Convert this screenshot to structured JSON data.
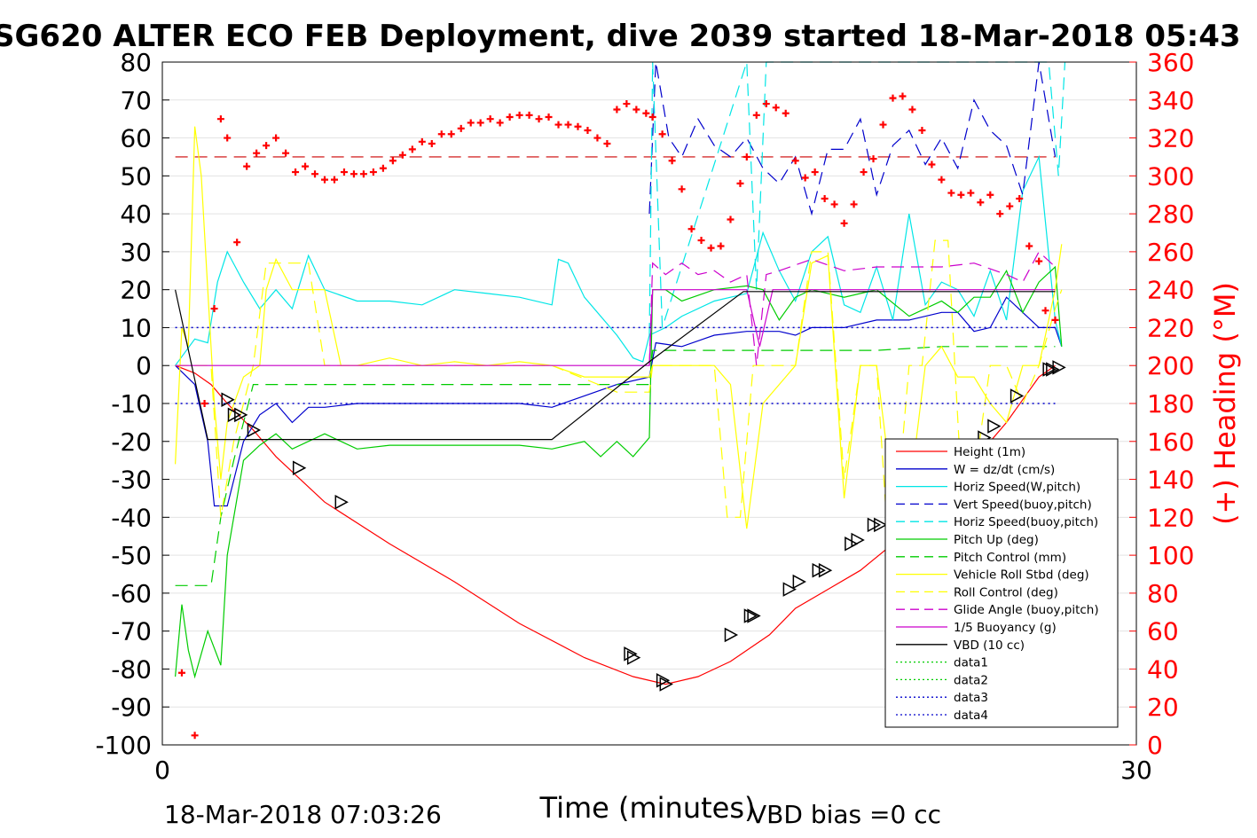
{
  "chart_data": {
    "type": "line",
    "title": "SG620 ALTER ECO FEB Deployment, dive 2039 started 18-Mar-2018 05:43",
    "xlabel": "Time (minutes)",
    "ylabel_right": "(+) Heading (°M)",
    "xlim": [
      0,
      30
    ],
    "ylim": [
      -100,
      80
    ],
    "ylim_right": [
      0,
      360
    ],
    "x_ticks": [
      "0",
      "30"
    ],
    "y_ticks": [
      "80",
      "70",
      "60",
      "50",
      "40",
      "30",
      "20",
      "10",
      "0",
      "-10",
      "-20",
      "-30",
      "-40",
      "-50",
      "-60",
      "-70",
      "-80",
      "-90",
      "-100"
    ],
    "y_ticks_right": [
      "360",
      "340",
      "320",
      "300",
      "280",
      "260",
      "240",
      "220",
      "200",
      "180",
      "160",
      "140",
      "120",
      "100",
      "80",
      "60",
      "40",
      "20",
      "0"
    ],
    "grid": true,
    "legend_position": "lower-right",
    "footer_left": "18-Mar-2018 07:03:26",
    "footer_right": "VBD bias =0 cc",
    "colors": {
      "heading": "#ff0000",
      "right_axis": "#ff0000"
    },
    "series": [
      {
        "name": "Height (1m)",
        "color": "#ff0000",
        "dash": "solid",
        "x": [
          0.4,
          1.0,
          1.5,
          2.0,
          2.8,
          3.5,
          5.0,
          7.0,
          9.0,
          11.0,
          13.0,
          14.5,
          15.5,
          16.5,
          17.5,
          18.7,
          19.5,
          20.5,
          21.5,
          22.5,
          23.0,
          24.0,
          24.5,
          25.0,
          25.5,
          26.0,
          26.5,
          27.0,
          27.5
        ],
        "y": [
          0,
          -2,
          -5,
          -10,
          -17,
          -24,
          -36,
          -47,
          -57,
          -68,
          -77,
          -82,
          -84,
          -82,
          -78,
          -71,
          -64,
          -59,
          -54,
          -47,
          -42,
          -36,
          -31,
          -26,
          -20,
          -15,
          -9,
          -3,
          0
        ]
      },
      {
        "name": "W = dz/dt (cm/s)",
        "color": "#0000cc",
        "dash": "solid",
        "x": [
          0.4,
          1.0,
          1.4,
          1.6,
          2.0,
          2.5,
          3.0,
          3.5,
          4.0,
          4.5,
          5.0,
          6.0,
          8.0,
          10.0,
          11.0,
          12.0,
          13.0,
          14.0,
          15.0,
          15.2,
          16.0,
          17.0,
          18.0,
          19.0,
          19.5,
          20.0,
          21.0,
          22.0,
          23.0,
          24.0,
          24.5,
          25.0,
          25.5,
          26.0,
          26.5,
          27.0,
          27.5,
          27.7
        ],
        "y": [
          0,
          -5,
          -20,
          -37,
          -37,
          -20,
          -13,
          -10,
          -15,
          -11,
          -11,
          -10,
          -10,
          -10,
          -10,
          -11,
          -8,
          -5,
          -3,
          6,
          5,
          8,
          9,
          9,
          8,
          10,
          10,
          12,
          12,
          14,
          14,
          9,
          10,
          18,
          14,
          10,
          10,
          5
        ]
      },
      {
        "name": "Horiz Speed(W,pitch)",
        "color": "#00e6e6",
        "dash": "solid",
        "x": [
          0.4,
          1.0,
          1.4,
          1.7,
          2.0,
          2.5,
          3.0,
          3.5,
          4.0,
          4.5,
          5.0,
          6.0,
          7.0,
          8.0,
          9.0,
          10.0,
          11.0,
          12.0,
          12.2,
          12.5,
          13.0,
          14.0,
          14.5,
          14.8,
          15.0,
          15.5,
          16.0,
          17.0,
          18.0,
          18.5,
          19.0,
          19.5,
          20.0,
          20.5,
          21.0,
          21.5,
          22.0,
          22.5,
          23.0,
          23.5,
          24.0,
          24.5,
          25.0,
          25.5,
          26.0,
          26.5,
          27.0,
          27.5,
          27.7
        ],
        "y": [
          0,
          7,
          6,
          22,
          30,
          22,
          15,
          20,
          15,
          29,
          20,
          17,
          17,
          16,
          20,
          19,
          18,
          16,
          28,
          27,
          18,
          8,
          2,
          1,
          8,
          10,
          13,
          17,
          19,
          35,
          25,
          17,
          30,
          34,
          16,
          14,
          26,
          12,
          40,
          16,
          22,
          20,
          13,
          25,
          12,
          46,
          55,
          12,
          5
        ]
      },
      {
        "name": "Vert Speed(buoy,pitch)",
        "color": "#0000cc",
        "dash": "long",
        "x": [
          15.0,
          15.2,
          15.6,
          16.0,
          16.5,
          17.0,
          17.5,
          18.0,
          18.5,
          19.0,
          19.5,
          20.0,
          20.5,
          21.0,
          21.5,
          22.0,
          22.5,
          23.0,
          23.5,
          24.0,
          24.5,
          25.0,
          25.5,
          26.0,
          26.5,
          27.0,
          27.5
        ],
        "y": [
          40,
          80,
          60,
          55,
          65,
          58,
          55,
          60,
          52,
          48,
          55,
          40,
          57,
          57,
          65,
          45,
          58,
          62,
          53,
          60,
          52,
          70,
          62,
          58,
          45,
          80,
          55
        ]
      },
      {
        "name": "Horiz Speed(buoy,pitch)",
        "color": "#00e6e6",
        "dash": "long",
        "x": [
          15.0,
          15.1,
          15.4,
          18.0,
          18.3,
          18.6,
          27.3,
          27.6,
          27.8
        ],
        "y": [
          8,
          80,
          10,
          80,
          20,
          80,
          80,
          50,
          80
        ]
      },
      {
        "name": "Pitch Up (deg)",
        "color": "#00cc00",
        "dash": "solid",
        "x": [
          0.4,
          0.6,
          0.8,
          1.0,
          1.4,
          1.8,
          2.0,
          2.5,
          3.0,
          3.5,
          4.0,
          5.0,
          6.0,
          7.0,
          8.0,
          9.0,
          10.0,
          11.0,
          12.0,
          13.0,
          13.5,
          14.0,
          14.5,
          15.0,
          15.1,
          15.5,
          16.0,
          17.0,
          18.0,
          18.5,
          19.0,
          19.5,
          20.0,
          21.0,
          22.0,
          23.0,
          24.0,
          24.5,
          25.0,
          25.5,
          26.0,
          26.5,
          27.0,
          27.5,
          27.7
        ],
        "y": [
          -82,
          -63,
          -75,
          -82,
          -70,
          -79,
          -50,
          -25,
          -21,
          -18,
          -22,
          -18,
          -22,
          -21,
          -21,
          -21,
          -21,
          -21,
          -22,
          -20,
          -24,
          -20,
          -24,
          -19,
          20,
          20,
          17,
          20,
          21,
          20,
          12,
          18,
          20,
          18,
          20,
          13,
          17,
          14,
          18,
          18,
          25,
          14,
          22,
          26,
          5
        ]
      },
      {
        "name": "Pitch Control (mm)",
        "color": "#00cc00",
        "dash": "long",
        "x": [
          0.4,
          1.0,
          1.5,
          1.8,
          2.2,
          2.8,
          3.5,
          5.0,
          8.0,
          12.0,
          14.0,
          15.0,
          15.1,
          16.0,
          18.0,
          20.0,
          22.0,
          24.0,
          26.0,
          27.5
        ],
        "y": [
          -58,
          -58,
          -58,
          -40,
          -25,
          -5,
          -5,
          -5,
          -5,
          -5,
          -5,
          -5,
          4,
          4,
          4,
          4,
          4,
          5,
          5,
          5
        ]
      },
      {
        "name": "Vehicle Roll Stbd (deg)",
        "color": "#ffff00",
        "dash": "solid",
        "x": [
          0.4,
          0.6,
          0.8,
          1.0,
          1.2,
          1.4,
          1.6,
          1.8,
          2.0,
          2.5,
          3.0,
          3.2,
          3.5,
          4.0,
          4.5,
          5.0,
          5.5,
          6.0,
          7.0,
          8.0,
          9.0,
          10.0,
          11.0,
          12.0,
          13.0,
          14.0,
          15.0,
          15.1,
          16.0,
          17.0,
          17.5,
          18.0,
          18.5,
          19.0,
          19.5,
          20.0,
          20.5,
          21.0,
          21.5,
          22.0,
          22.5,
          23.0,
          23.5,
          24.0,
          24.5,
          25.0,
          25.5,
          26.0,
          26.5,
          27.0,
          27.5,
          27.7
        ],
        "y": [
          -26,
          10,
          5,
          63,
          50,
          20,
          -10,
          -30,
          -15,
          -3,
          0,
          20,
          28,
          20,
          20,
          20,
          0,
          0,
          2,
          0,
          1,
          0,
          1,
          0,
          -3,
          -3,
          -3,
          0,
          0,
          0,
          -5,
          -43,
          -10,
          -5,
          0,
          27,
          29,
          -35,
          0,
          0,
          -35,
          -35,
          0,
          5,
          -3,
          -3,
          -10,
          -15,
          0,
          0,
          20,
          32
        ]
      },
      {
        "name": "Roll Control (deg)",
        "color": "#ffff00",
        "dash": "long",
        "x": [
          0.4,
          1.0,
          1.5,
          1.8,
          2.2,
          2.8,
          3.2,
          3.5,
          4.0,
          4.5,
          5.0,
          6.0,
          8.0,
          10.0,
          12.0,
          14.0,
          15.0,
          15.1,
          16.0,
          17.0,
          17.4,
          17.8,
          18.2,
          18.6,
          19.0,
          19.5,
          20.0,
          20.5,
          21.0,
          21.5,
          22.0,
          22.3,
          22.6,
          23.0,
          23.4,
          23.8,
          24.2,
          24.6,
          25.0,
          25.5,
          26.0,
          26.5,
          27.0,
          27.5,
          27.7
        ],
        "y": [
          0,
          0,
          0,
          -40,
          -20,
          0,
          27,
          27,
          27,
          27,
          0,
          0,
          0,
          0,
          0,
          -7,
          -7,
          0,
          0,
          0,
          -40,
          -40,
          0,
          0,
          0,
          0,
          30,
          30,
          -30,
          0,
          0,
          -40,
          -40,
          0,
          0,
          33,
          33,
          -30,
          -30,
          0,
          0,
          -10,
          0,
          15,
          20
        ]
      },
      {
        "name": "Glide Angle (buoy,pitch)",
        "color": "#cc00cc",
        "dash": "long",
        "x": [
          15.0,
          15.1,
          15.5,
          16.0,
          16.5,
          17.0,
          17.5,
          18.0,
          18.3,
          18.6,
          19.0,
          20.0,
          21.0,
          22.0,
          23.0,
          24.0,
          25.0,
          26.0,
          26.5,
          27.0,
          27.5
        ],
        "y": [
          0,
          27,
          24,
          27,
          24,
          25,
          22,
          24,
          0,
          24,
          25,
          28,
          25,
          26,
          26,
          26,
          27,
          24,
          22,
          30,
          26
        ]
      },
      {
        "name": "1/5 Buoyancy (g)",
        "color": "#cc00cc",
        "dash": "solid",
        "x": [
          0.4,
          5.0,
          10.0,
          15.0,
          15.1,
          18.0,
          18.4,
          18.8,
          20.0,
          25.0,
          27.5
        ],
        "y": [
          0,
          0,
          0,
          0,
          20,
          20,
          5,
          20,
          20,
          20,
          20
        ]
      },
      {
        "name": "VBD (10 cc)",
        "color": "#000000",
        "dash": "solid",
        "x": [
          0.4,
          1.4,
          5.0,
          12.0,
          15.0,
          17.9,
          20.0,
          27.5
        ],
        "y": [
          20,
          -19.5,
          -19.5,
          -19.5,
          1,
          19.5,
          19.5,
          19.5
        ]
      },
      {
        "name": "data1",
        "color": "#00cc00",
        "dash": "dot",
        "x": [],
        "y": []
      },
      {
        "name": "data2",
        "color": "#00cc00",
        "dash": "dot",
        "x": [],
        "y": []
      },
      {
        "name": "data3",
        "color": "#0000cc",
        "dash": "dot",
        "x": [
          0.4,
          27.5
        ],
        "y": [
          10,
          10
        ]
      },
      {
        "name": "data4",
        "color": "#0000cc",
        "dash": "dot",
        "x": [
          0.4,
          27.5
        ],
        "y": [
          -10,
          -10
        ]
      }
    ],
    "heading_reference": {
      "color": "#cc0000",
      "dash": "long",
      "y": 55,
      "xlim": [
        0.4,
        27.5
      ]
    },
    "heading": {
      "color": "#ff0000",
      "x": [
        0.6,
        1.0,
        1.3,
        1.6,
        1.8,
        2.0,
        2.3,
        2.6,
        2.9,
        3.2,
        3.5,
        3.8,
        4.1,
        4.4,
        4.7,
        5.0,
        5.3,
        5.6,
        5.9,
        6.2,
        6.5,
        6.8,
        7.1,
        7.4,
        7.7,
        8.0,
        8.3,
        8.6,
        8.9,
        9.2,
        9.5,
        9.8,
        10.1,
        10.4,
        10.7,
        11.0,
        11.3,
        11.6,
        11.9,
        12.2,
        12.5,
        12.8,
        13.1,
        13.4,
        13.7,
        14.0,
        14.3,
        14.6,
        14.9,
        15.1,
        15.4,
        15.7,
        16.0,
        16.3,
        16.6,
        16.9,
        17.2,
        17.5,
        17.8,
        18.0,
        18.3,
        18.6,
        18.9,
        19.2,
        19.5,
        19.8,
        20.1,
        20.4,
        20.7,
        21.0,
        21.3,
        21.6,
        21.9,
        22.2,
        22.5,
        22.8,
        23.1,
        23.4,
        23.7,
        24.0,
        24.3,
        24.6,
        24.9,
        25.2,
        25.5,
        25.8,
        26.1,
        26.4,
        26.7,
        27.0,
        27.2,
        27.5
      ],
      "y": [
        38,
        5,
        180,
        230,
        330,
        320,
        265,
        305,
        312,
        316,
        320,
        312,
        302,
        305,
        301,
        298,
        298,
        302,
        301,
        301,
        302,
        304,
        308,
        311,
        314,
        318,
        317,
        322,
        322,
        325,
        328,
        328,
        330,
        328,
        331,
        332,
        332,
        330,
        331,
        327,
        327,
        326,
        324,
        320,
        317,
        335,
        338,
        335,
        333,
        331,
        322,
        308,
        293,
        272,
        266,
        262,
        263,
        277,
        296,
        310,
        332,
        338,
        336,
        333,
        308,
        299,
        302,
        288,
        285,
        275,
        285,
        302,
        309,
        327,
        341,
        342,
        335,
        324,
        306,
        298,
        291,
        290,
        291,
        286,
        290,
        280,
        284,
        288,
        263,
        255,
        229,
        224
      ]
    },
    "markers": {
      "color": "#000000",
      "x": [
        2.0,
        2.2,
        2.4,
        2.8,
        4.2,
        5.5,
        14.4,
        14.5,
        15.4,
        15.5,
        17.5,
        18.1,
        18.2,
        19.3,
        19.6,
        20.2,
        20.4,
        21.2,
        21.4,
        21.9,
        22.1,
        23.2,
        23.4,
        24.0,
        24.3,
        25.3,
        25.6,
        26.3,
        27.3,
        27.4,
        27.6
      ],
      "y": [
        -9,
        -13,
        -13,
        -17,
        -27,
        -36,
        -76,
        -77,
        -83,
        -84,
        -71,
        -66,
        -66,
        -59,
        -57,
        -54,
        -54,
        -47,
        -46,
        -42,
        -42,
        -33,
        -32,
        -27,
        -24,
        -19,
        -16,
        -8,
        -1,
        -1,
        -0.5
      ]
    }
  }
}
